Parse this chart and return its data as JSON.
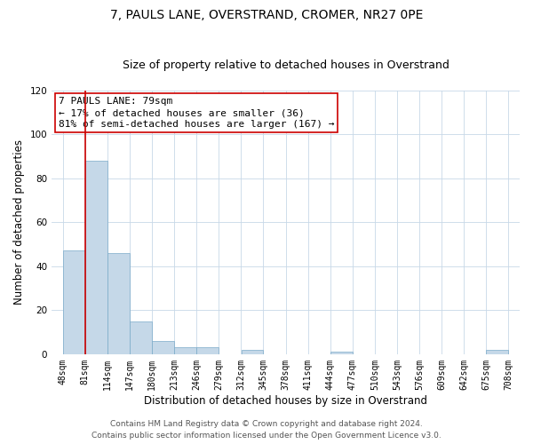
{
  "title": "7, PAULS LANE, OVERSTRAND, CROMER, NR27 0PE",
  "subtitle": "Size of property relative to detached houses in Overstrand",
  "xlabel": "Distribution of detached houses by size in Overstrand",
  "ylabel": "Number of detached properties",
  "bin_edges": [
    48,
    81,
    114,
    147,
    180,
    213,
    246,
    279,
    312,
    345,
    378,
    411,
    444,
    477,
    510,
    543,
    576,
    609,
    642,
    675,
    708
  ],
  "bar_heights": [
    47,
    88,
    46,
    15,
    6,
    3,
    3,
    0,
    2,
    0,
    0,
    0,
    1,
    0,
    0,
    0,
    0,
    0,
    0,
    2
  ],
  "bar_color": "#c5d8e8",
  "bar_edge_color": "#7aaac8",
  "property_line_x": 81,
  "property_line_color": "#cc0000",
  "ylim": [
    0,
    120
  ],
  "yticks": [
    0,
    20,
    40,
    60,
    80,
    100,
    120
  ],
  "tick_labels": [
    "48sqm",
    "81sqm",
    "114sqm",
    "147sqm",
    "180sqm",
    "213sqm",
    "246sqm",
    "279sqm",
    "312sqm",
    "345sqm",
    "378sqm",
    "411sqm",
    "444sqm",
    "477sqm",
    "510sqm",
    "543sqm",
    "576sqm",
    "609sqm",
    "642sqm",
    "675sqm",
    "708sqm"
  ],
  "annotation_title": "7 PAULS LANE: 79sqm",
  "annotation_line1": "← 17% of detached houses are smaller (36)",
  "annotation_line2": "81% of semi-detached houses are larger (167) →",
  "annotation_box_color": "#cc0000",
  "footer_line1": "Contains HM Land Registry data © Crown copyright and database right 2024.",
  "footer_line2": "Contains public sector information licensed under the Open Government Licence v3.0.",
  "grid_color": "#c8d8e8",
  "background_color": "#ffffff",
  "title_fontsize": 10,
  "subtitle_fontsize": 9,
  "axis_label_fontsize": 8.5,
  "tick_fontsize": 7,
  "footer_fontsize": 6.5,
  "annotation_fontsize": 8
}
